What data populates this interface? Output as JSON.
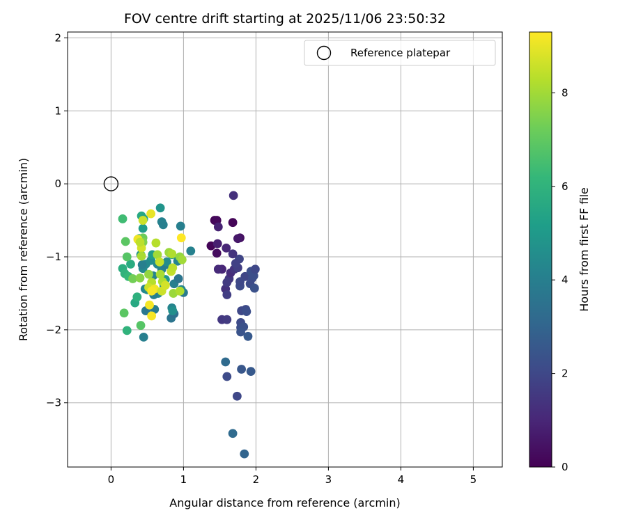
{
  "chart_data": {
    "type": "scatter",
    "title": "FOV centre drift starting at 2025/11/06 23:50:32",
    "xlabel": "Angular distance from reference (arcmin)",
    "ylabel": "Rotation from reference (arcmin)",
    "xlim": [
      -0.6,
      5.4
    ],
    "ylim": [
      -3.88,
      2.08
    ],
    "xticks": [
      0,
      1,
      2,
      3,
      4,
      5
    ],
    "yticks": [
      -3,
      -2,
      -1,
      0,
      1,
      2
    ],
    "xtick_labels": [
      "0",
      "1",
      "2",
      "3",
      "4",
      "5"
    ],
    "ytick_labels": [
      "−3",
      "−2",
      "−1",
      "0",
      "1",
      "2"
    ],
    "grid": true,
    "legend": {
      "position": "top-right",
      "entries": [
        {
          "label": "Reference platepar",
          "marker": "open-circle"
        }
      ]
    },
    "reference_point": {
      "x": 0,
      "y": 0
    },
    "colorbar": {
      "label": "Hours from first FF file",
      "colormap": "viridis",
      "range": [
        0,
        9.3
      ],
      "ticks": [
        0,
        2,
        4,
        6,
        8
      ],
      "tick_labels": [
        "0",
        "2",
        "4",
        "6",
        "8"
      ]
    },
    "points": [
      {
        "x": 1.38,
        "y": -0.85,
        "t": 0.1
      },
      {
        "x": 1.43,
        "y": -0.5,
        "t": 0.1
      },
      {
        "x": 1.46,
        "y": -0.5,
        "t": 0.2
      },
      {
        "x": 1.68,
        "y": -0.53,
        "t": 0.1
      },
      {
        "x": 1.46,
        "y": -0.95,
        "t": 0.3
      },
      {
        "x": 1.78,
        "y": -0.74,
        "t": 0.4
      },
      {
        "x": 1.75,
        "y": -0.75,
        "t": 0.6
      },
      {
        "x": 1.47,
        "y": -0.82,
        "t": 0.8
      },
      {
        "x": 1.48,
        "y": -0.59,
        "t": 0.9
      },
      {
        "x": 1.59,
        "y": -0.88,
        "t": 1.0
      },
      {
        "x": 1.69,
        "y": -0.16,
        "t": 1.3
      },
      {
        "x": 1.53,
        "y": -1.17,
        "t": 1.0
      },
      {
        "x": 1.48,
        "y": -1.17,
        "t": 1.1
      },
      {
        "x": 1.58,
        "y": -1.44,
        "t": 1.3
      },
      {
        "x": 1.63,
        "y": -1.3,
        "t": 1.5
      },
      {
        "x": 1.6,
        "y": -1.35,
        "t": 1.6
      },
      {
        "x": 1.65,
        "y": -1.22,
        "t": 1.2
      },
      {
        "x": 1.7,
        "y": -1.17,
        "t": 1.4
      },
      {
        "x": 1.75,
        "y": -1.15,
        "t": 1.7
      },
      {
        "x": 1.77,
        "y": -1.03,
        "t": 1.9
      },
      {
        "x": 1.68,
        "y": -0.96,
        "t": 1.4
      },
      {
        "x": 1.72,
        "y": -1.09,
        "t": 1.8
      },
      {
        "x": 1.85,
        "y": -1.27,
        "t": 1.9
      },
      {
        "x": 1.78,
        "y": -1.4,
        "t": 2.1
      },
      {
        "x": 1.78,
        "y": -1.34,
        "t": 2.0
      },
      {
        "x": 1.92,
        "y": -1.37,
        "t": 2.1
      },
      {
        "x": 1.93,
        "y": -1.2,
        "t": 2.2
      },
      {
        "x": 1.95,
        "y": -1.29,
        "t": 2.1
      },
      {
        "x": 1.97,
        "y": -1.26,
        "t": 2.2
      },
      {
        "x": 1.99,
        "y": -1.17,
        "t": 2.0
      },
      {
        "x": 1.98,
        "y": -1.43,
        "t": 2.3
      },
      {
        "x": 1.6,
        "y": -1.52,
        "t": 1.7
      },
      {
        "x": 1.53,
        "y": -1.86,
        "t": 1.5
      },
      {
        "x": 1.6,
        "y": -1.86,
        "t": 1.6
      },
      {
        "x": 1.8,
        "y": -1.74,
        "t": 2.0
      },
      {
        "x": 1.86,
        "y": -1.72,
        "t": 2.1
      },
      {
        "x": 1.87,
        "y": -1.75,
        "t": 2.2
      },
      {
        "x": 1.79,
        "y": -1.9,
        "t": 2.1
      },
      {
        "x": 1.79,
        "y": -1.97,
        "t": 2.2
      },
      {
        "x": 1.83,
        "y": -1.96,
        "t": 2.3
      },
      {
        "x": 1.79,
        "y": -2.03,
        "t": 2.4
      },
      {
        "x": 1.89,
        "y": -2.09,
        "t": 2.6
      },
      {
        "x": 1.58,
        "y": -2.44,
        "t": 3.2
      },
      {
        "x": 1.6,
        "y": -2.64,
        "t": 2.1
      },
      {
        "x": 1.8,
        "y": -2.54,
        "t": 2.5
      },
      {
        "x": 1.93,
        "y": -2.57,
        "t": 2.6
      },
      {
        "x": 1.74,
        "y": -2.91,
        "t": 2.0
      },
      {
        "x": 1.68,
        "y": -3.42,
        "t": 3.2
      },
      {
        "x": 1.84,
        "y": -3.7,
        "t": 3.0
      },
      {
        "x": 0.45,
        "y": -2.1,
        "t": 4.0
      },
      {
        "x": 0.48,
        "y": -1.74,
        "t": 3.7
      },
      {
        "x": 0.6,
        "y": -1.72,
        "t": 3.9
      },
      {
        "x": 0.83,
        "y": -1.84,
        "t": 3.6
      },
      {
        "x": 0.87,
        "y": -1.78,
        "t": 3.4
      },
      {
        "x": 0.84,
        "y": -1.7,
        "t": 4.2
      },
      {
        "x": 0.85,
        "y": -1.74,
        "t": 4.6
      },
      {
        "x": 0.87,
        "y": -1.37,
        "t": 4.0
      },
      {
        "x": 1.0,
        "y": -1.49,
        "t": 3.8
      },
      {
        "x": 0.97,
        "y": -1.45,
        "t": 4.3
      },
      {
        "x": 0.93,
        "y": -1.3,
        "t": 3.6
      },
      {
        "x": 0.96,
        "y": -1.02,
        "t": 3.7
      },
      {
        "x": 0.92,
        "y": -1.06,
        "t": 4.2
      },
      {
        "x": 1.1,
        "y": -0.92,
        "t": 4.1
      },
      {
        "x": 0.96,
        "y": -0.58,
        "t": 4.0
      },
      {
        "x": 0.7,
        "y": -0.52,
        "t": 4.1
      },
      {
        "x": 0.72,
        "y": -0.56,
        "t": 4.0
      },
      {
        "x": 0.68,
        "y": -0.33,
        "t": 4.8
      },
      {
        "x": 0.7,
        "y": -1.17,
        "t": 4.0
      },
      {
        "x": 0.75,
        "y": -1.11,
        "t": 3.9
      },
      {
        "x": 0.64,
        "y": -1.1,
        "t": 4.3
      },
      {
        "x": 0.55,
        "y": -1.05,
        "t": 4.6
      },
      {
        "x": 0.48,
        "y": -1.1,
        "t": 4.4
      },
      {
        "x": 0.47,
        "y": -1.44,
        "t": 4.2
      },
      {
        "x": 0.5,
        "y": -1.45,
        "t": 4.5
      },
      {
        "x": 0.58,
        "y": -1.26,
        "t": 4.2
      },
      {
        "x": 0.65,
        "y": -1.5,
        "t": 4.4
      },
      {
        "x": 0.59,
        "y": -1.52,
        "t": 4.0
      },
      {
        "x": 0.73,
        "y": -1.4,
        "t": 4.3
      },
      {
        "x": 0.75,
        "y": -1.31,
        "t": 4.9
      },
      {
        "x": 0.77,
        "y": -1.07,
        "t": 4.5
      },
      {
        "x": 0.44,
        "y": -1.16,
        "t": 4.4
      },
      {
        "x": 0.43,
        "y": -1.11,
        "t": 4.0
      },
      {
        "x": 0.41,
        "y": -0.97,
        "t": 4.8
      },
      {
        "x": 0.57,
        "y": -0.97,
        "t": 5.1
      },
      {
        "x": 0.84,
        "y": -0.97,
        "t": 5.0
      },
      {
        "x": 0.44,
        "y": -0.61,
        "t": 5.1
      },
      {
        "x": 0.42,
        "y": -0.44,
        "t": 5.6
      },
      {
        "x": 0.45,
        "y": -0.48,
        "t": 5.3
      },
      {
        "x": 0.39,
        "y": -0.75,
        "t": 5.4
      },
      {
        "x": 0.27,
        "y": -1.1,
        "t": 5.7
      },
      {
        "x": 0.16,
        "y": -1.16,
        "t": 5.8
      },
      {
        "x": 0.19,
        "y": -1.23,
        "t": 6.0
      },
      {
        "x": 0.24,
        "y": -1.27,
        "t": 6.2
      },
      {
        "x": 0.33,
        "y": -1.63,
        "t": 5.6
      },
      {
        "x": 0.36,
        "y": -1.55,
        "t": 5.9
      },
      {
        "x": 0.22,
        "y": -2.01,
        "t": 6.0
      },
      {
        "x": 0.41,
        "y": -1.94,
        "t": 6.8
      },
      {
        "x": 0.18,
        "y": -1.77,
        "t": 6.9
      },
      {
        "x": 0.16,
        "y": -0.48,
        "t": 6.4
      },
      {
        "x": 0.2,
        "y": -0.79,
        "t": 6.9
      },
      {
        "x": 0.22,
        "y": -1.0,
        "t": 6.8
      },
      {
        "x": 0.3,
        "y": -1.3,
        "t": 7.3
      },
      {
        "x": 0.4,
        "y": -1.29,
        "t": 7.6
      },
      {
        "x": 0.44,
        "y": -0.74,
        "t": 7.2
      },
      {
        "x": 0.44,
        "y": -0.8,
        "t": 7.5
      },
      {
        "x": 0.42,
        "y": -0.88,
        "t": 8.7
      },
      {
        "x": 0.37,
        "y": -0.76,
        "t": 9.1
      },
      {
        "x": 0.4,
        "y": -0.8,
        "t": 8.4
      },
      {
        "x": 0.42,
        "y": -0.99,
        "t": 8.1
      },
      {
        "x": 0.55,
        "y": -0.41,
        "t": 9.0
      },
      {
        "x": 0.44,
        "y": -0.5,
        "t": 8.6
      },
      {
        "x": 0.62,
        "y": -0.81,
        "t": 8.3
      },
      {
        "x": 0.64,
        "y": -0.97,
        "t": 8.0
      },
      {
        "x": 0.67,
        "y": -1.07,
        "t": 8.5
      },
      {
        "x": 0.8,
        "y": -0.94,
        "t": 7.9
      },
      {
        "x": 0.84,
        "y": -0.96,
        "t": 8.2
      },
      {
        "x": 0.95,
        "y": -1.0,
        "t": 7.8
      },
      {
        "x": 0.98,
        "y": -1.04,
        "t": 8.0
      },
      {
        "x": 0.97,
        "y": -0.74,
        "t": 9.3
      },
      {
        "x": 0.83,
        "y": -1.2,
        "t": 8.5
      },
      {
        "x": 0.85,
        "y": -1.15,
        "t": 8.4
      },
      {
        "x": 0.71,
        "y": -1.34,
        "t": 8.2
      },
      {
        "x": 0.68,
        "y": -1.24,
        "t": 8.1
      },
      {
        "x": 0.56,
        "y": -1.35,
        "t": 8.3
      },
      {
        "x": 0.52,
        "y": -1.24,
        "t": 7.8
      },
      {
        "x": 0.52,
        "y": -1.42,
        "t": 8.6
      },
      {
        "x": 0.6,
        "y": -1.44,
        "t": 9.1
      },
      {
        "x": 0.56,
        "y": -1.47,
        "t": 9.2
      },
      {
        "x": 0.7,
        "y": -1.47,
        "t": 8.6
      },
      {
        "x": 0.75,
        "y": -1.39,
        "t": 8.7
      },
      {
        "x": 0.86,
        "y": -1.5,
        "t": 7.9
      },
      {
        "x": 0.95,
        "y": -1.47,
        "t": 8.2
      },
      {
        "x": 0.53,
        "y": -1.66,
        "t": 9.2
      },
      {
        "x": 0.56,
        "y": -1.81,
        "t": 9.2
      }
    ]
  }
}
